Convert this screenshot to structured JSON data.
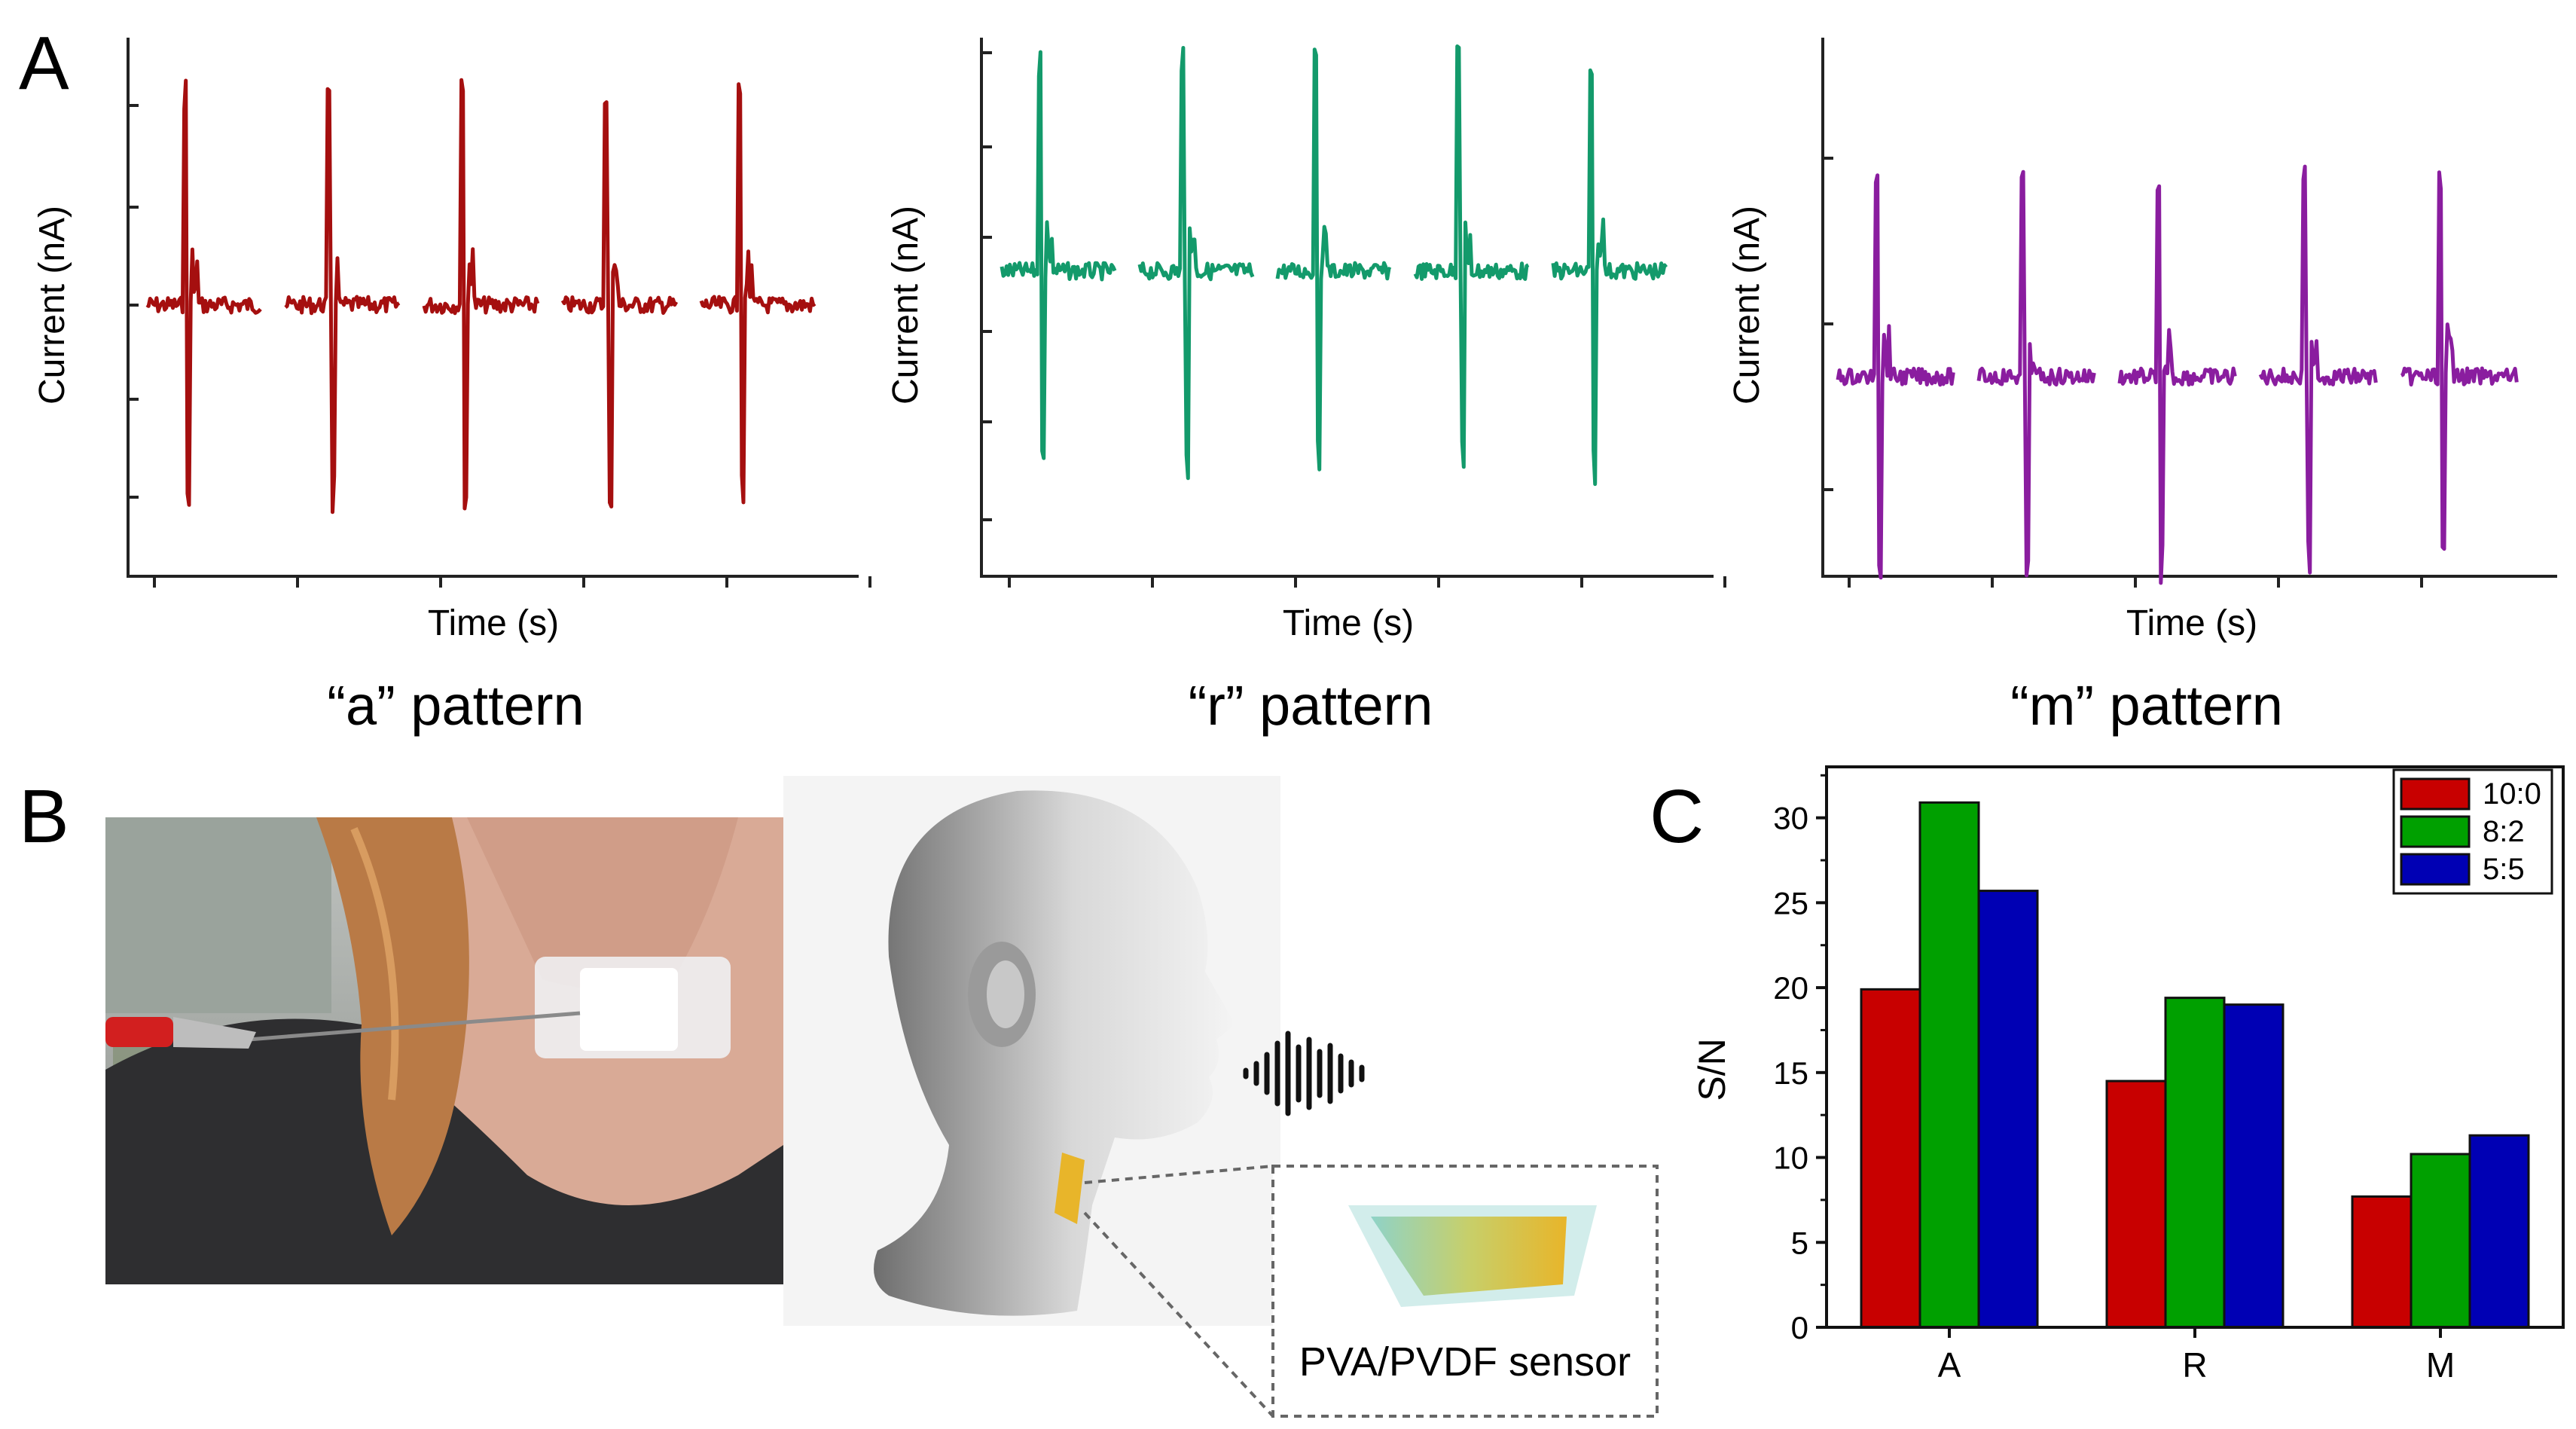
{
  "panel_labels": {
    "a": "A",
    "b": "B",
    "c": "C"
  },
  "panel_a": {
    "x_label": "Time (s)",
    "y_label": "Current (nA)",
    "plots": [
      {
        "caption": "“a” pattern",
        "color": "#a50f0f",
        "peak_count": 5
      },
      {
        "caption": "“r” pattern",
        "color": "#139a6b",
        "peak_count": 5
      },
      {
        "caption": "“m” pattern",
        "color": "#8a1d9f",
        "peak_count": 5
      }
    ]
  },
  "panel_b": {
    "sensor_label": "PVA/PVDF sensor"
  },
  "chart_data": {
    "type": "bar",
    "categories": [
      "A",
      "R",
      "M"
    ],
    "series": [
      {
        "name": "10:0",
        "color": "#c80000",
        "values": [
          19.9,
          14.5,
          7.7
        ]
      },
      {
        "name": "8:2",
        "color": "#00a000",
        "values": [
          30.9,
          19.4,
          10.2
        ]
      },
      {
        "name": "5:5",
        "color": "#0000b4",
        "values": [
          25.7,
          19.0,
          11.3
        ]
      }
    ],
    "ylabel": "S/N",
    "xlabel": "",
    "ylim": [
      0,
      33
    ],
    "yticks": [
      0,
      5,
      10,
      15,
      20,
      25,
      30
    ],
    "legend_position": "top-right"
  }
}
